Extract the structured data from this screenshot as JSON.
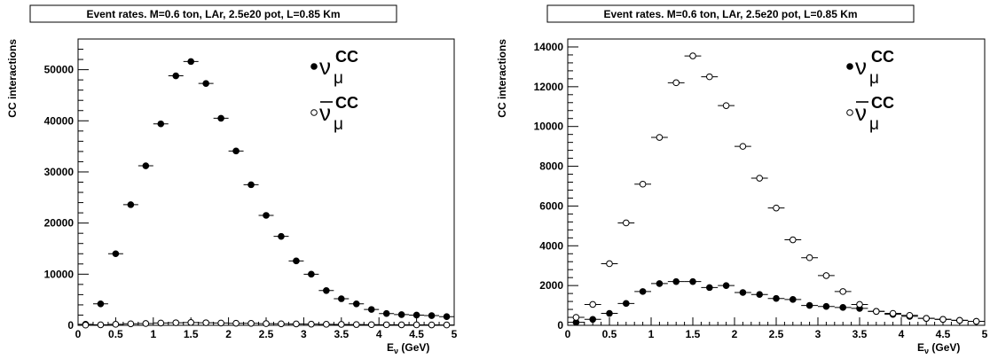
{
  "chart_data": [
    {
      "type": "scatter",
      "title": "Event rates. M=0.6 ton, LAr, 2.5e20 pot, L=0.85 Km",
      "ylabel": "CC interactions",
      "xlabel_main": "E",
      "xlabel_sub": "ν",
      "xlabel_unit": " (GeV)",
      "xlim": [
        0,
        5
      ],
      "ylim": [
        0,
        56000
      ],
      "xticks": [
        0,
        0.5,
        1,
        1.5,
        2,
        2.5,
        3,
        3.5,
        4,
        4.5,
        5
      ],
      "xtick_labels": [
        "0",
        "0.5",
        "1",
        "1.5",
        "2",
        "2.5",
        "3",
        "3.5",
        "4",
        "4.5",
        "5"
      ],
      "yticks": [
        0,
        10000,
        20000,
        30000,
        40000,
        50000
      ],
      "ytick_labels": [
        "0",
        "10000",
        "20000",
        "30000",
        "40000",
        "50000"
      ],
      "legend": [
        {
          "symbol": "filled",
          "base": "ν",
          "sub": "μ",
          "sup": "CC",
          "bar": false
        },
        {
          "symbol": "open",
          "base": "ν",
          "sub": "μ",
          "sup": "CC",
          "bar": true
        }
      ],
      "x": [
        0.1,
        0.3,
        0.5,
        0.7,
        0.9,
        1.1,
        1.3,
        1.5,
        1.7,
        1.9,
        2.1,
        2.3,
        2.5,
        2.7,
        2.9,
        3.1,
        3.3,
        3.5,
        3.7,
        3.9,
        4.1,
        4.3,
        4.5,
        4.7,
        4.9
      ],
      "series": [
        {
          "marker": "filled",
          "values": [
            200,
            4200,
            14000,
            23600,
            31200,
            39400,
            48800,
            51600,
            47300,
            40500,
            34100,
            27500,
            21500,
            17400,
            12600,
            10000,
            6800,
            5200,
            4200,
            3100,
            2300,
            2100,
            2000,
            1900,
            1700
          ]
        },
        {
          "marker": "open",
          "values": [
            50,
            100,
            200,
            300,
            350,
            450,
            500,
            550,
            500,
            450,
            400,
            380,
            330,
            300,
            270,
            230,
            200,
            180,
            150,
            130,
            110,
            100,
            90,
            80,
            70
          ]
        }
      ]
    },
    {
      "type": "scatter",
      "title": "Event rates. M=0.6 ton, LAr, 2.5e20 pot, L=0.85 Km",
      "ylabel": "CC interactions",
      "xlabel_main": "E",
      "xlabel_sub": "ν",
      "xlabel_unit": " (GeV)",
      "xlim": [
        0,
        5
      ],
      "ylim": [
        0,
        14400
      ],
      "xticks": [
        0,
        0.5,
        1,
        1.5,
        2,
        2.5,
        3,
        3.5,
        4,
        4.5,
        5
      ],
      "xtick_labels": [
        "0",
        "0.5",
        "1",
        "1.5",
        "2",
        "2.5",
        "3",
        "3.5",
        "4",
        "4.5",
        "5"
      ],
      "yticks": [
        0,
        2000,
        4000,
        6000,
        8000,
        10000,
        12000,
        14000
      ],
      "ytick_labels": [
        "0",
        "2000",
        "4000",
        "6000",
        "8000",
        "10000",
        "12000",
        "14000"
      ],
      "legend": [
        {
          "symbol": "filled",
          "base": "ν",
          "sub": "μ",
          "sup": "CC",
          "bar": false
        },
        {
          "symbol": "open",
          "base": "ν",
          "sub": "μ",
          "sup": "CC",
          "bar": true
        }
      ],
      "x": [
        0.1,
        0.3,
        0.5,
        0.7,
        0.9,
        1.1,
        1.3,
        1.5,
        1.7,
        1.9,
        2.1,
        2.3,
        2.5,
        2.7,
        2.9,
        3.1,
        3.3,
        3.5,
        3.7,
        3.9,
        4.1,
        4.3,
        4.5,
        4.7,
        4.9
      ],
      "series": [
        {
          "marker": "filled",
          "values": [
            150,
            300,
            600,
            1100,
            1700,
            2100,
            2200,
            2200,
            1900,
            2000,
            1650,
            1550,
            1350,
            1300,
            1000,
            950,
            900,
            850,
            700,
            550,
            450,
            350,
            300,
            250,
            200
          ]
        },
        {
          "marker": "open",
          "values": [
            400,
            1050,
            3100,
            5150,
            7100,
            9450,
            12200,
            13550,
            12500,
            11050,
            9000,
            7400,
            5900,
            4300,
            3400,
            2500,
            1700,
            1050,
            700,
            600,
            500,
            350,
            300,
            250,
            200
          ]
        }
      ]
    }
  ]
}
